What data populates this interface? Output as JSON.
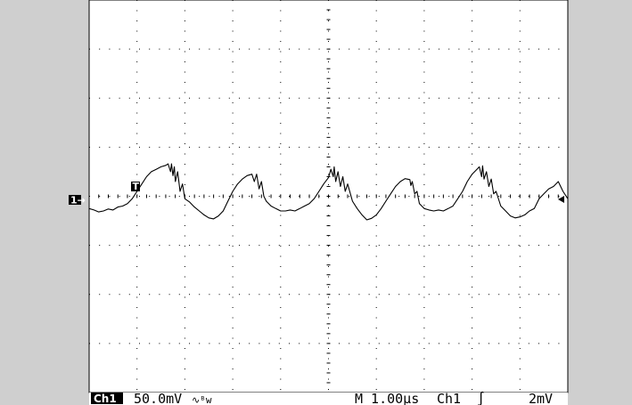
{
  "chart_data": {
    "type": "line",
    "title": "",
    "xlabel": "",
    "ylabel": "",
    "grid": true,
    "x_divisions": 10,
    "y_divisions": 8,
    "xlim": [
      0,
      10
    ],
    "ylim": [
      -4,
      4
    ],
    "series": [
      {
        "channel_marker": "1",
        "points": [
          [
            0.0,
            -0.25
          ],
          [
            0.1,
            -0.28
          ],
          [
            0.2,
            -0.32
          ],
          [
            0.3,
            -0.3
          ],
          [
            0.4,
            -0.26
          ],
          [
            0.5,
            -0.28
          ],
          [
            0.6,
            -0.22
          ],
          [
            0.7,
            -0.2
          ],
          [
            0.8,
            -0.15
          ],
          [
            0.9,
            -0.05
          ],
          [
            1.0,
            0.1
          ],
          [
            1.1,
            0.25
          ],
          [
            1.2,
            0.4
          ],
          [
            1.3,
            0.5
          ],
          [
            1.4,
            0.55
          ],
          [
            1.5,
            0.6
          ],
          [
            1.6,
            0.63
          ],
          [
            1.65,
            0.66
          ],
          [
            1.7,
            0.5
          ],
          [
            1.72,
            0.66
          ],
          [
            1.75,
            0.42
          ],
          [
            1.78,
            0.6
          ],
          [
            1.8,
            0.3
          ],
          [
            1.85,
            0.5
          ],
          [
            1.9,
            0.1
          ],
          [
            1.95,
            0.25
          ],
          [
            2.0,
            -0.05
          ],
          [
            2.1,
            -0.12
          ],
          [
            2.2,
            -0.22
          ],
          [
            2.3,
            -0.3
          ],
          [
            2.4,
            -0.38
          ],
          [
            2.5,
            -0.44
          ],
          [
            2.6,
            -0.46
          ],
          [
            2.7,
            -0.4
          ],
          [
            2.8,
            -0.3
          ],
          [
            2.9,
            -0.1
          ],
          [
            3.0,
            0.1
          ],
          [
            3.1,
            0.25
          ],
          [
            3.2,
            0.35
          ],
          [
            3.3,
            0.42
          ],
          [
            3.4,
            0.45
          ],
          [
            3.45,
            0.3
          ],
          [
            3.5,
            0.45
          ],
          [
            3.55,
            0.15
          ],
          [
            3.6,
            0.3
          ],
          [
            3.65,
            0.0
          ],
          [
            3.7,
            -0.1
          ],
          [
            3.8,
            -0.2
          ],
          [
            3.9,
            -0.25
          ],
          [
            4.0,
            -0.3
          ],
          [
            4.1,
            -0.3
          ],
          [
            4.2,
            -0.28
          ],
          [
            4.3,
            -0.3
          ],
          [
            4.4,
            -0.25
          ],
          [
            4.5,
            -0.2
          ],
          [
            4.6,
            -0.15
          ],
          [
            4.7,
            -0.05
          ],
          [
            4.8,
            0.1
          ],
          [
            4.9,
            0.25
          ],
          [
            5.0,
            0.38
          ],
          [
            5.05,
            0.55
          ],
          [
            5.1,
            0.4
          ],
          [
            5.12,
            0.6
          ],
          [
            5.15,
            0.3
          ],
          [
            5.2,
            0.5
          ],
          [
            5.25,
            0.2
          ],
          [
            5.3,
            0.4
          ],
          [
            5.35,
            0.1
          ],
          [
            5.4,
            0.25
          ],
          [
            5.5,
            -0.1
          ],
          [
            5.6,
            -0.25
          ],
          [
            5.7,
            -0.38
          ],
          [
            5.8,
            -0.48
          ],
          [
            5.9,
            -0.45
          ],
          [
            6.0,
            -0.38
          ],
          [
            6.1,
            -0.25
          ],
          [
            6.2,
            -0.1
          ],
          [
            6.3,
            0.05
          ],
          [
            6.4,
            0.2
          ],
          [
            6.5,
            0.3
          ],
          [
            6.6,
            0.36
          ],
          [
            6.7,
            0.34
          ],
          [
            6.72,
            0.22
          ],
          [
            6.75,
            0.3
          ],
          [
            6.8,
            0.05
          ],
          [
            6.85,
            0.1
          ],
          [
            6.9,
            -0.15
          ],
          [
            7.0,
            -0.25
          ],
          [
            7.1,
            -0.28
          ],
          [
            7.2,
            -0.3
          ],
          [
            7.3,
            -0.28
          ],
          [
            7.4,
            -0.3
          ],
          [
            7.5,
            -0.25
          ],
          [
            7.6,
            -0.2
          ],
          [
            7.7,
            -0.05
          ],
          [
            7.8,
            0.1
          ],
          [
            7.9,
            0.3
          ],
          [
            8.0,
            0.45
          ],
          [
            8.1,
            0.55
          ],
          [
            8.15,
            0.6
          ],
          [
            8.2,
            0.4
          ],
          [
            8.22,
            0.62
          ],
          [
            8.25,
            0.35
          ],
          [
            8.3,
            0.5
          ],
          [
            8.35,
            0.2
          ],
          [
            8.4,
            0.35
          ],
          [
            8.45,
            0.05
          ],
          [
            8.5,
            0.1
          ],
          [
            8.6,
            -0.2
          ],
          [
            8.7,
            -0.3
          ],
          [
            8.8,
            -0.4
          ],
          [
            8.9,
            -0.44
          ],
          [
            9.0,
            -0.42
          ],
          [
            9.1,
            -0.38
          ],
          [
            9.2,
            -0.3
          ],
          [
            9.3,
            -0.25
          ],
          [
            9.4,
            -0.05
          ],
          [
            9.5,
            0.05
          ],
          [
            9.6,
            0.15
          ],
          [
            9.7,
            0.2
          ],
          [
            9.8,
            0.3
          ],
          [
            9.9,
            0.1
          ],
          [
            10.0,
            -0.05
          ]
        ]
      }
    ],
    "trigger_time": 1.0,
    "trigger_level": 0.0,
    "annotations": {
      "channel_marker": "1→",
      "trigger_marker": "T",
      "channel_label": "Ch1",
      "volts_per_div": "50.0mV",
      "coupling_symbol": "∿ᴮw",
      "timebase": "M 1.00µs",
      "trigger_source": "Ch1",
      "trigger_slope": "∫",
      "trigger_level_text": "2mV"
    }
  },
  "colors": {
    "background": "#cfcfcf",
    "plot_background": "#ffffff",
    "trace": "#000000",
    "grid": "#000000"
  }
}
